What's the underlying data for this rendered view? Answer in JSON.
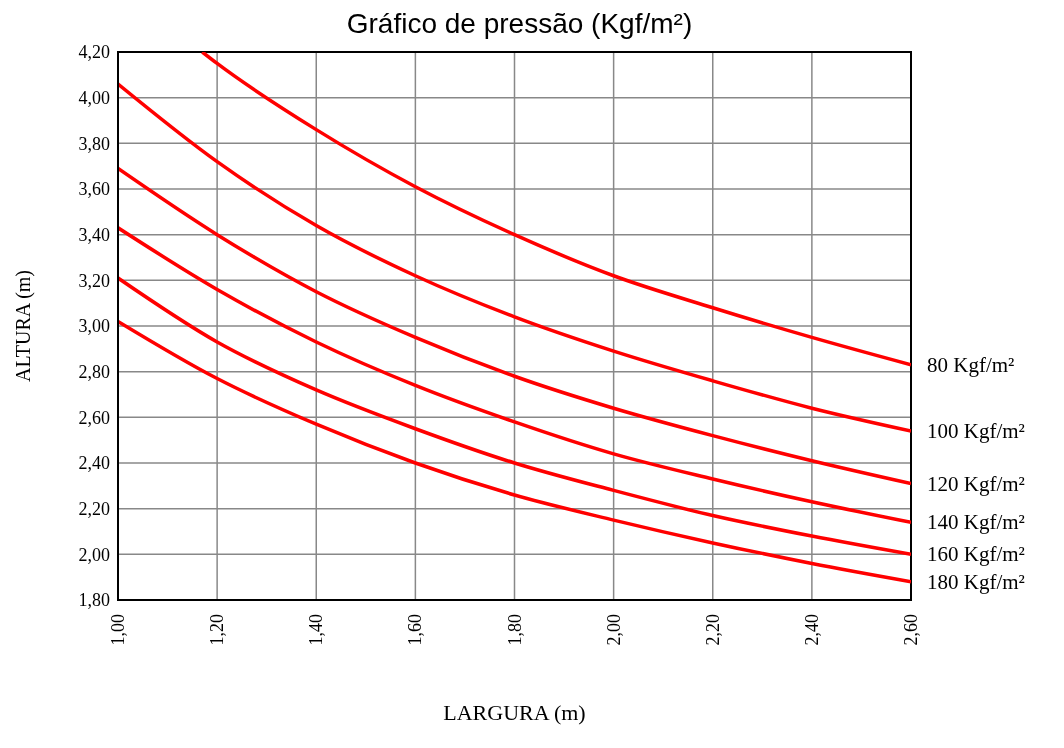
{
  "chart_data": {
    "type": "line",
    "title": "Gráfico de pressão (Kgf/m²)",
    "xlabel": "LARGURA (m)",
    "ylabel": "ALTURA (m)",
    "x": [
      1.0,
      1.2,
      1.4,
      1.6,
      1.8,
      2.0,
      2.2,
      2.4,
      2.6
    ],
    "series": [
      {
        "name": "80 Kgf/m²",
        "color": "#ff0000",
        "x": [
          1.17,
          1.2,
          1.4,
          1.6,
          1.8,
          2.0,
          2.2,
          2.4,
          2.6
        ],
        "values": [
          4.2,
          4.15,
          3.86,
          3.61,
          3.4,
          3.22,
          3.08,
          2.95,
          2.83
        ]
      },
      {
        "name": "100 Kgf/m²",
        "color": "#ff0000",
        "values": [
          4.06,
          3.72,
          3.44,
          3.22,
          3.04,
          2.89,
          2.76,
          2.64,
          2.54
        ]
      },
      {
        "name": "120 Kgf/m²",
        "color": "#ff0000",
        "values": [
          3.69,
          3.4,
          3.15,
          2.95,
          2.78,
          2.64,
          2.52,
          2.41,
          2.31
        ]
      },
      {
        "name": "140 Kgf/m²",
        "color": "#ff0000",
        "values": [
          3.43,
          3.16,
          2.93,
          2.74,
          2.58,
          2.44,
          2.33,
          2.23,
          2.14
        ]
      },
      {
        "name": "160 Kgf/m²",
        "color": "#ff0000",
        "values": [
          3.21,
          2.93,
          2.72,
          2.55,
          2.4,
          2.28,
          2.17,
          2.08,
          2.0
        ]
      },
      {
        "name": "180 Kgf/m²",
        "color": "#ff0000",
        "values": [
          3.02,
          2.77,
          2.57,
          2.4,
          2.26,
          2.15,
          2.05,
          1.96,
          1.88
        ]
      }
    ],
    "xlim": [
      1.0,
      2.6
    ],
    "xticks": [
      {
        "value": 1.0,
        "label": "1,00"
      },
      {
        "value": 1.2,
        "label": "1,20"
      },
      {
        "value": 1.4,
        "label": "1,40"
      },
      {
        "value": 1.6,
        "label": "1,60"
      },
      {
        "value": 1.8,
        "label": "1,80"
      },
      {
        "value": 2.0,
        "label": "2,00"
      },
      {
        "value": 2.2,
        "label": "2,20"
      },
      {
        "value": 2.4,
        "label": "2,40"
      },
      {
        "value": 2.6,
        "label": "2,60"
      }
    ],
    "ylim": [
      1.8,
      4.2
    ],
    "yticks": [
      {
        "value": 1.8,
        "label": "1,80"
      },
      {
        "value": 2.0,
        "label": "2,00"
      },
      {
        "value": 2.2,
        "label": "2,20"
      },
      {
        "value": 2.4,
        "label": "2,40"
      },
      {
        "value": 2.6,
        "label": "2,60"
      },
      {
        "value": 2.8,
        "label": "2,80"
      },
      {
        "value": 3.0,
        "label": "3,00"
      },
      {
        "value": 3.2,
        "label": "3,20"
      },
      {
        "value": 3.4,
        "label": "3,40"
      },
      {
        "value": 3.6,
        "label": "3,60"
      },
      {
        "value": 3.8,
        "label": "3,80"
      },
      {
        "value": 4.0,
        "label": "4,00"
      },
      {
        "value": 4.2,
        "label": "4,20"
      }
    ],
    "grid": true,
    "marker": "none",
    "line_style": "solid"
  }
}
